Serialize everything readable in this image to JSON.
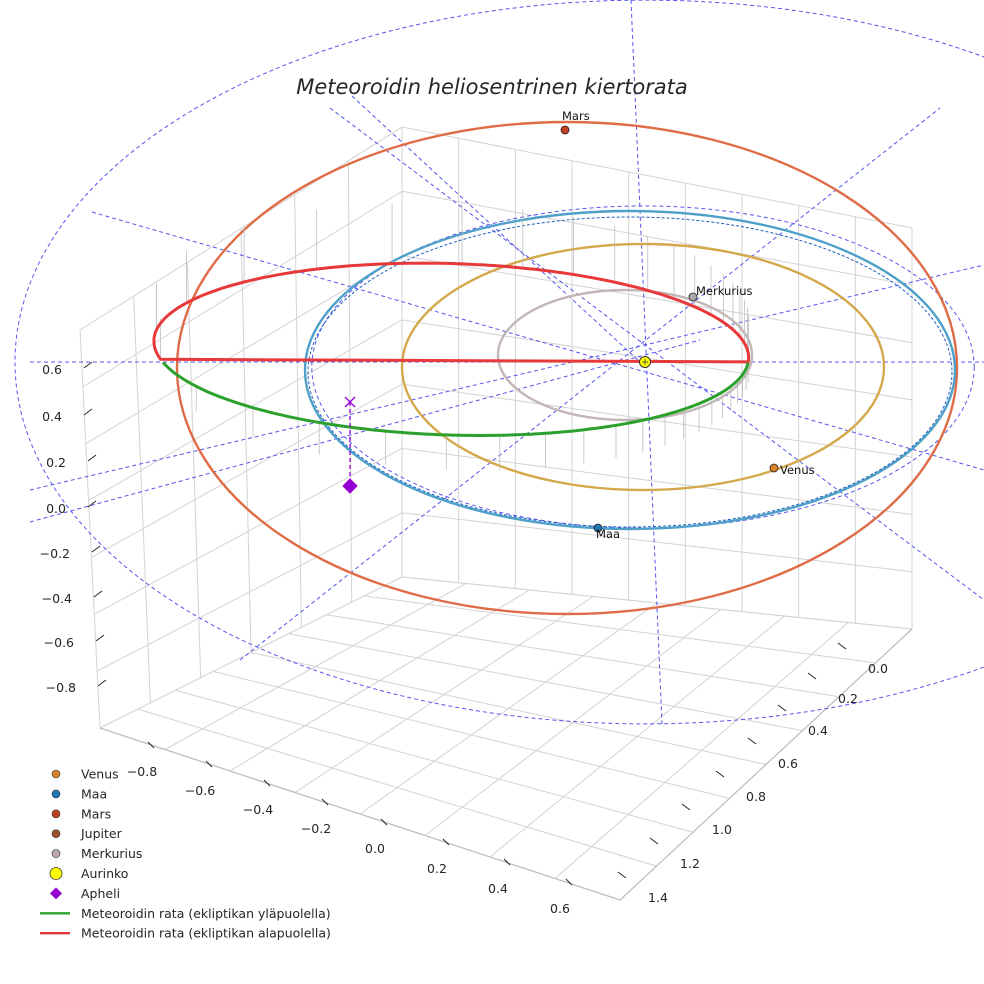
{
  "chart_data": {
    "type": "3d-line",
    "title": "Meteoroidin heliosentrinen kiertorata",
    "x_ticks": [
      "−0.8",
      "−0.6",
      "−0.4",
      "−0.2",
      "0.0",
      "0.2",
      "0.4",
      "0.6"
    ],
    "y_ticks": [
      "0.0",
      "0.2",
      "0.4",
      "0.6",
      "0.8",
      "1.0",
      "1.2",
      "1.4"
    ],
    "z_ticks": [
      "0.6",
      "0.4",
      "0.2",
      "0.0",
      "−0.2",
      "−0.4",
      "−0.6",
      "−0.8"
    ],
    "planets": [
      {
        "name": "Mars",
        "label": "Mars",
        "orbit_radius_au": 1.52,
        "color": "#e06c47",
        "marker_color": "#c1401f"
      },
      {
        "name": "Maa",
        "label": "Maa",
        "orbit_radius_au": 1.0,
        "color": "#4ea0c8",
        "marker_color": "#1f77b4"
      },
      {
        "name": "Venus",
        "label": "Venus",
        "orbit_radius_au": 0.72,
        "color": "#d4a84a",
        "marker_color": "#d9822b"
      },
      {
        "name": "Merkurius",
        "label": "Merkurius",
        "orbit_radius_au": 0.39,
        "color": "#c2b6b6",
        "marker_color": "#a9a9a9"
      }
    ],
    "meteoroid": {
      "perihelion_au": 0.3,
      "aphelion_au": 1.45,
      "segments": [
        {
          "name": "Meteoroidin rata (ekliptikan yläpuolella)",
          "color": "#2ca02c"
        },
        {
          "name": "Meteoroidin rata (ekliptikan alapuolella)",
          "color": "#e8393a"
        }
      ]
    },
    "legend": [
      {
        "label": "Venus",
        "marker": "dot",
        "color": "#d9822b"
      },
      {
        "label": "Maa",
        "marker": "dot",
        "color": "#1f77b4"
      },
      {
        "label": "Mars",
        "marker": "dot",
        "color": "#c1401f"
      },
      {
        "label": "Jupiter",
        "marker": "dot",
        "color": "#a0522d"
      },
      {
        "label": "Merkurius",
        "marker": "dot",
        "color": "#bfa9a9"
      },
      {
        "label": "Aurinko",
        "marker": "big-dot",
        "color": "#ffff00"
      },
      {
        "label": "Apheli",
        "marker": "diamond",
        "color": "#9400d3"
      },
      {
        "label": "Meteoroidin rata (ekliptikan yläpuolella)",
        "marker": "line",
        "color": "#2ca02c"
      },
      {
        "label": "Meteoroidin rata (ekliptikan alapuolella)",
        "marker": "line",
        "color": "#e8393a"
      }
    ],
    "colors": {
      "grid": "#d3d3d3",
      "ecliptic_guides": "#5555ee",
      "apheli": "#9400d3",
      "sun": "#ffff00",
      "text": "#262626"
    }
  }
}
